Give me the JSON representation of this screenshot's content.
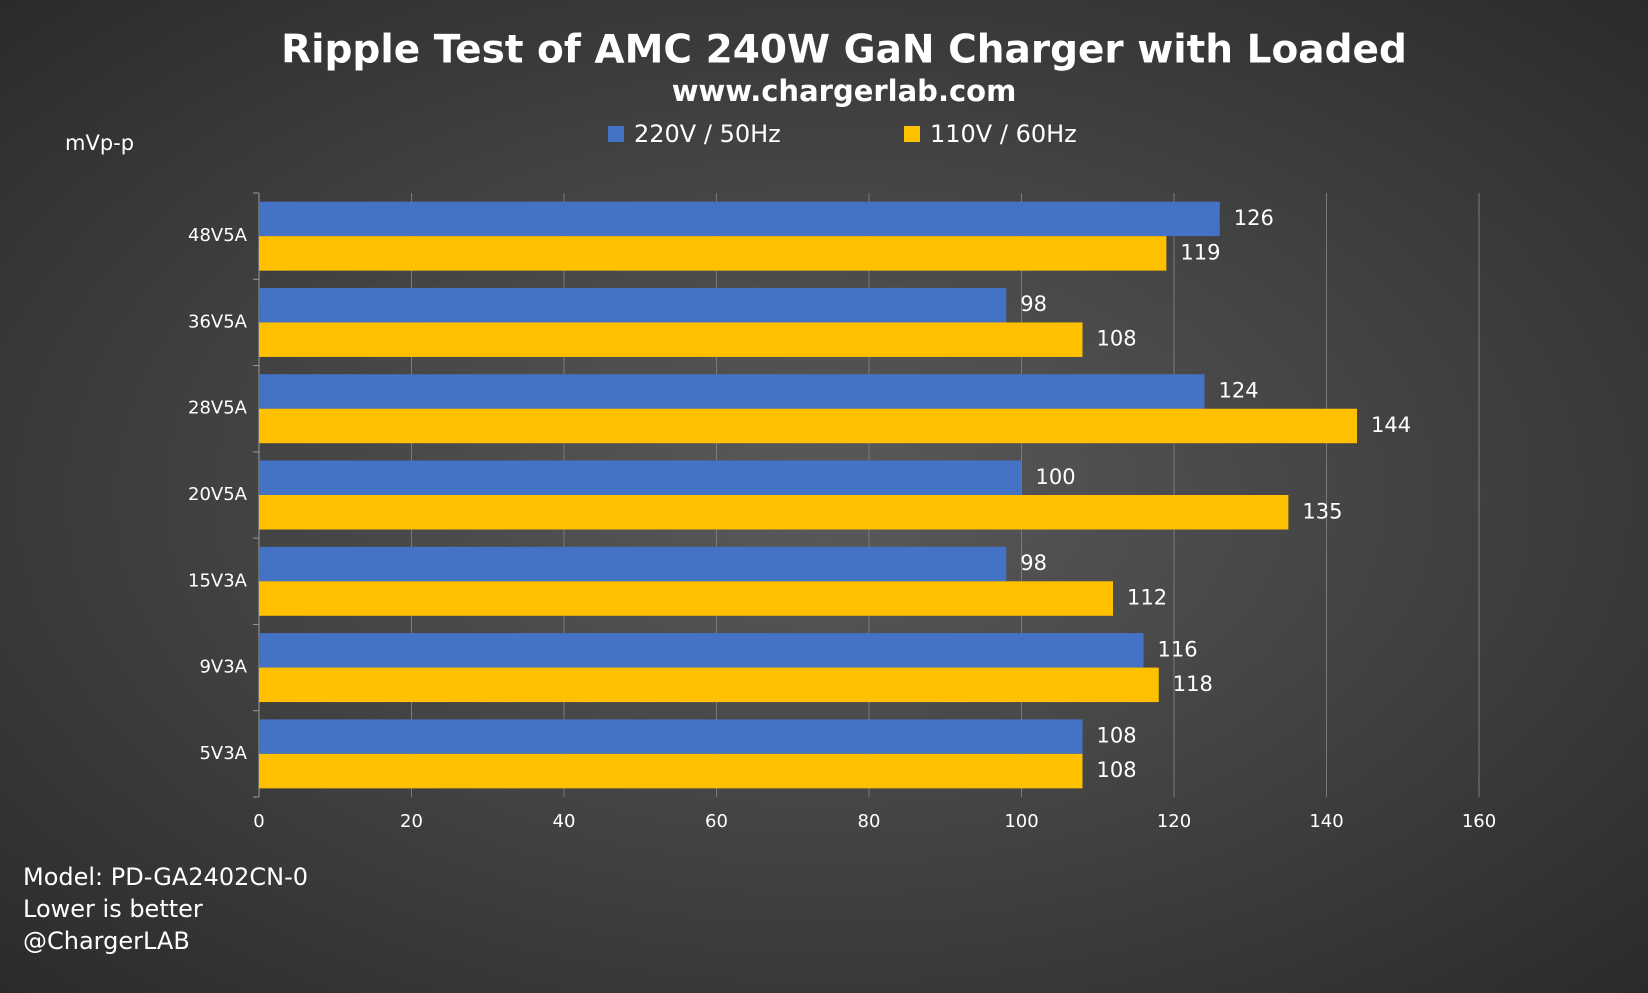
{
  "chart_data": {
    "type": "hbar",
    "title": "Ripple Test of AMC 240W GaN Charger with Loaded",
    "subtitle": "www.chargerlab.com",
    "x_axis_label": "mVp-p",
    "categories": [
      "48V5A",
      "36V5A",
      "28V5A",
      "20V5A",
      "15V3A",
      "9V3A",
      "5V3A"
    ],
    "series": [
      {
        "name": "220V / 50Hz",
        "color": "#4472c4",
        "values": [
          126,
          98,
          124,
          100,
          98,
          116,
          108
        ]
      },
      {
        "name": "110V / 60Hz",
        "color": "#ffc000",
        "values": [
          119,
          108,
          144,
          135,
          112,
          118,
          108
        ]
      }
    ],
    "xlim": [
      0,
      160
    ],
    "xticks": [
      0,
      20,
      40,
      60,
      80,
      100,
      120,
      140,
      160
    ],
    "grid": true,
    "legend": "top",
    "notes": [
      "Model: PD-GA2402CN-0",
      "Lower is better",
      "@ChargerLAB"
    ]
  }
}
